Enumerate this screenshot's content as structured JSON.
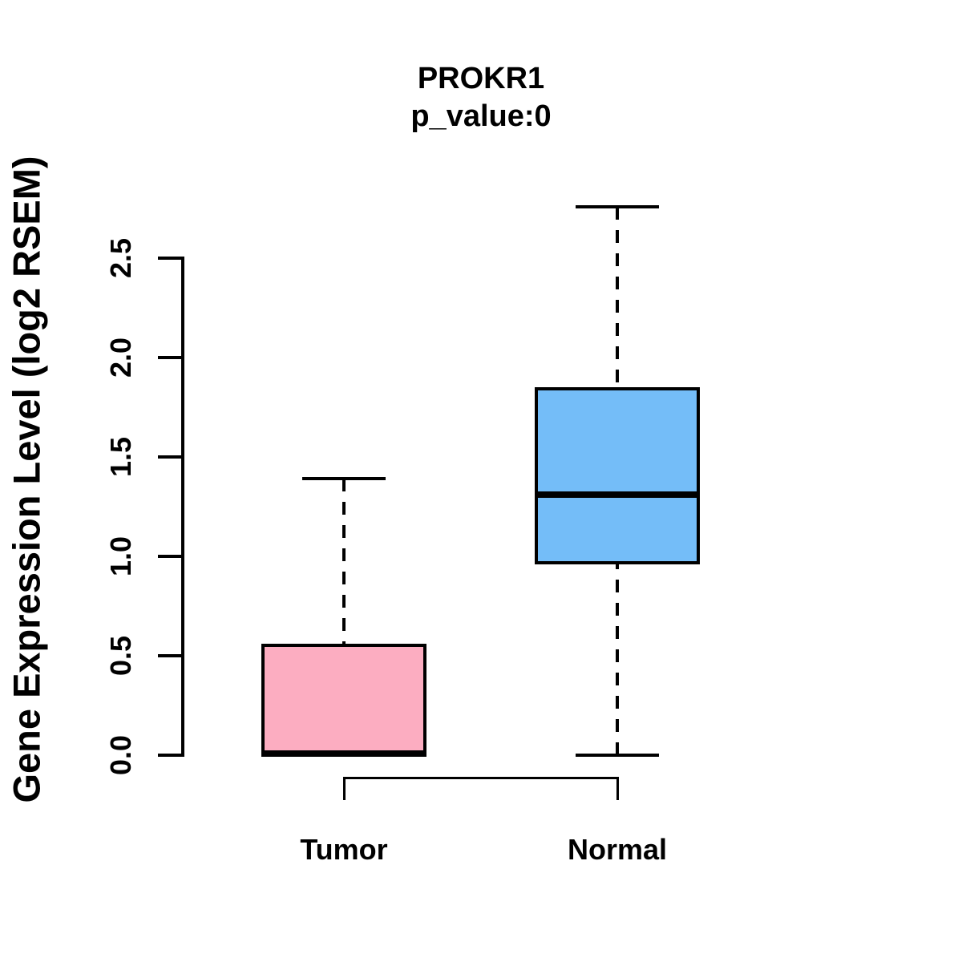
{
  "chart_data": {
    "type": "boxplot",
    "title": "PROKR1",
    "subtitle": "p_value:0",
    "ylabel": "Gene Expression Level (log2 RSEM)",
    "xlabel": "",
    "categories": [
      "Tumor",
      "Normal"
    ],
    "ytick_labels": [
      "0.0",
      "0.5",
      "1.0",
      "1.5",
      "2.0",
      "2.5"
    ],
    "ytick_values": [
      0,
      0.5,
      1,
      1.5,
      2,
      2.5
    ],
    "ylim": [
      0,
      2.8
    ],
    "grid": false,
    "legend": "none",
    "series": [
      {
        "name": "Tumor",
        "color": "#FCADC1",
        "whisker_low": 0.0,
        "q1": 0.0,
        "median": 0.01,
        "q3": 0.56,
        "whisker_high": 1.39
      },
      {
        "name": "Normal",
        "color": "#74BDF8",
        "whisker_low": 0.0,
        "q1": 0.96,
        "median": 1.31,
        "q3": 1.85,
        "whisker_high": 2.76
      }
    ],
    "colors": {
      "box_outline": "#000000",
      "background": "#FFFFFF"
    }
  }
}
